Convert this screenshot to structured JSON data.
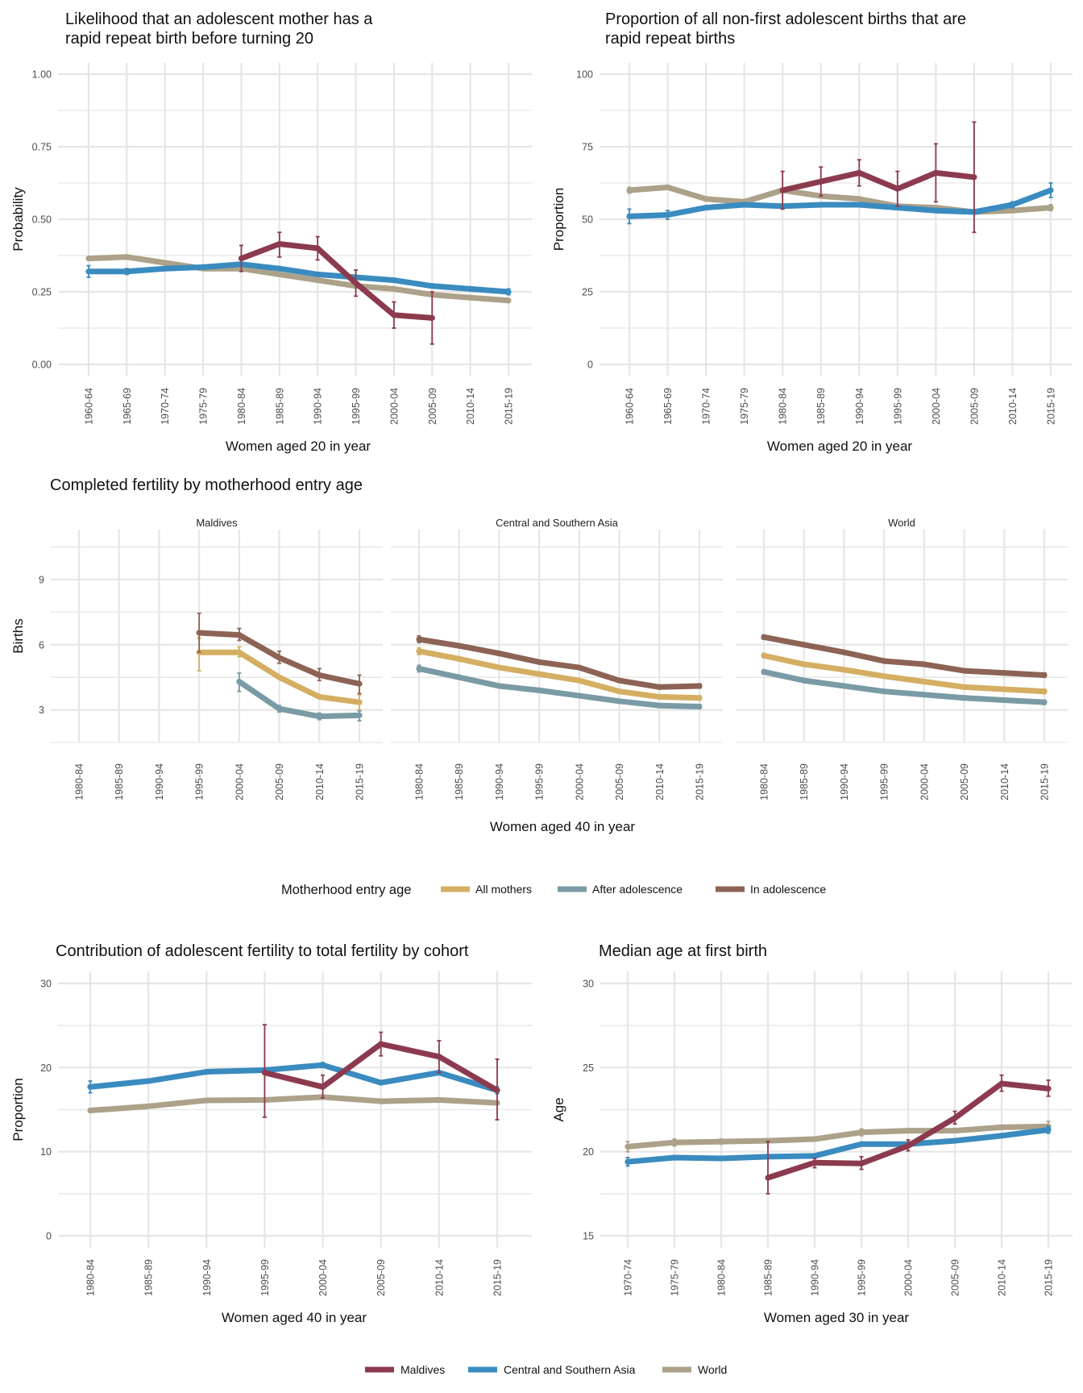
{
  "colors": {
    "maldives": "#8c3b4f",
    "csa": "#3a8bbf",
    "world": "#aca189",
    "all_mothers": "#d4ae62",
    "after_adolescence": "#7a9ba5",
    "in_adolescence": "#8c6355",
    "grid": "#e6e6e6"
  },
  "legends": {
    "motherhood": {
      "title": "Motherhood entry age",
      "items": [
        "All mothers",
        "After adolescence",
        "In adolescence"
      ]
    },
    "regions": {
      "items": [
        "Maldives",
        "Central and Southern Asia",
        "World"
      ]
    }
  },
  "chart_data": [
    {
      "id": "p1",
      "type": "line",
      "title": [
        "Likelihood that an adolescent mother has a",
        "rapid repeat birth before turning 20"
      ],
      "xlabel": "Women aged 20 in year",
      "ylabel": "Probability",
      "ylim": [
        0,
        1.0
      ],
      "yticks": [
        "0.00",
        "0.25",
        "0.50",
        "0.75",
        "1.00"
      ],
      "ytick_values": [
        0,
        0.25,
        0.5,
        0.75,
        1.0
      ],
      "categories": [
        "1960-64",
        "1965-69",
        "1970-74",
        "1975-79",
        "1980-84",
        "1985-89",
        "1990-94",
        "1995-99",
        "2000-04",
        "2005-09",
        "2010-14",
        "2015-19"
      ],
      "series": [
        {
          "name": "World",
          "key": "world",
          "values": [
            0.365,
            0.37,
            0.35,
            0.33,
            0.33,
            0.31,
            0.29,
            0.27,
            0.26,
            0.24,
            0.23,
            0.22
          ],
          "errors": [
            [
              0.36,
              0.37
            ],
            null,
            null,
            null,
            null,
            null,
            null,
            null,
            null,
            null,
            null,
            [
              0.215,
              0.225
            ]
          ]
        },
        {
          "name": "Central and Southern Asia",
          "key": "csa",
          "values": [
            0.32,
            0.32,
            0.33,
            0.335,
            0.345,
            0.33,
            0.31,
            0.3,
            0.29,
            0.27,
            0.26,
            0.25
          ],
          "errors": [
            [
              0.3,
              0.34
            ],
            [
              0.31,
              0.33
            ],
            null,
            null,
            null,
            null,
            null,
            null,
            null,
            null,
            null,
            [
              0.24,
              0.26
            ]
          ]
        },
        {
          "name": "Maldives",
          "key": "maldives",
          "values": [
            null,
            null,
            null,
            null,
            0.365,
            0.415,
            0.4,
            0.28,
            0.17,
            0.16,
            null,
            null
          ],
          "errors": [
            null,
            null,
            null,
            null,
            [
              0.32,
              0.41
            ],
            [
              0.37,
              0.455
            ],
            [
              0.36,
              0.44
            ],
            [
              0.235,
              0.325
            ],
            [
              0.125,
              0.215
            ],
            [
              0.07,
              0.25
            ],
            null,
            null
          ]
        }
      ]
    },
    {
      "id": "p2",
      "type": "line",
      "title": [
        "Proportion of all non-first adolescent births that are",
        "rapid repeat births"
      ],
      "xlabel": "Women aged 20 in year",
      "ylabel": "Proportion",
      "ylim": [
        0,
        100
      ],
      "yticks": [
        "0",
        "25",
        "50",
        "75",
        "100"
      ],
      "ytick_values": [
        0,
        25,
        50,
        75,
        100
      ],
      "categories": [
        "1960-64",
        "1965-69",
        "1970-74",
        "1975-79",
        "1980-84",
        "1985-89",
        "1990-94",
        "1995-99",
        "2000-04",
        "2005-09",
        "2010-14",
        "2015-19"
      ],
      "series": [
        {
          "name": "World",
          "key": "world",
          "values": [
            60,
            61,
            57,
            56,
            60,
            58,
            57,
            54.5,
            54,
            52.5,
            53,
            54
          ],
          "errors": [
            [
              59,
              61
            ],
            null,
            null,
            null,
            null,
            null,
            null,
            null,
            null,
            null,
            null,
            [
              53,
              55
            ]
          ]
        },
        {
          "name": "Central and Southern Asia",
          "key": "csa",
          "values": [
            51,
            51.5,
            54,
            55,
            54.5,
            55,
            55,
            54,
            53,
            52.5,
            55,
            60
          ],
          "errors": [
            [
              48.5,
              53.5
            ],
            [
              50,
              53
            ],
            null,
            null,
            null,
            null,
            null,
            null,
            null,
            null,
            [
              54,
              56
            ],
            [
              57.5,
              62.5
            ]
          ]
        },
        {
          "name": "Maldives",
          "key": "maldives",
          "values": [
            null,
            null,
            null,
            null,
            60,
            63,
            66,
            60.5,
            66,
            64.5,
            null,
            null
          ],
          "errors": [
            null,
            null,
            null,
            null,
            [
              53.5,
              66.5
            ],
            [
              58,
              68
            ],
            [
              61.5,
              70.5
            ],
            [
              54.5,
              66.5
            ],
            [
              56,
              76
            ],
            [
              45.5,
              83.5
            ],
            null,
            null
          ]
        }
      ]
    },
    {
      "id": "p3",
      "type": "line",
      "title": [
        "Completed fertility by motherhood entry age"
      ],
      "xlabel": "Women aged 40 in year",
      "ylabel": "Births",
      "ylim": [
        1.5,
        11.3
      ],
      "yticks": [
        "3",
        "6",
        "9"
      ],
      "ytick_values": [
        3,
        6,
        9
      ],
      "categories": [
        "1980-84",
        "1985-89",
        "1990-94",
        "1995-99",
        "2000-04",
        "2005-09",
        "2010-14",
        "2015-19"
      ],
      "facets": [
        {
          "label": "Maldives",
          "series": [
            {
              "name": "All mothers",
              "key": "all_mothers",
              "values": [
                null,
                null,
                null,
                5.65,
                5.65,
                4.5,
                3.6,
                3.35
              ],
              "errors": [
                null,
                null,
                null,
                [
                  4.8,
                  6.3
                ],
                [
                  5.45,
                  5.9
                ],
                null,
                null,
                [
                  3.0,
                  3.7
                ]
              ]
            },
            {
              "name": "After adolescence",
              "key": "after_adolescence",
              "values": [
                null,
                null,
                null,
                null,
                4.3,
                3.05,
                2.7,
                2.75
              ],
              "errors": [
                null,
                null,
                null,
                null,
                [
                  3.85,
                  4.7
                ],
                [
                  2.9,
                  3.2
                ],
                [
                  2.55,
                  2.85
                ],
                [
                  2.5,
                  2.95
                ]
              ]
            },
            {
              "name": "In adolescence",
              "key": "in_adolescence",
              "values": [
                null,
                null,
                null,
                6.55,
                6.45,
                5.4,
                4.6,
                4.2
              ],
              "errors": [
                null,
                null,
                null,
                [
                  5.65,
                  7.45
                ],
                [
                  6.2,
                  6.75
                ],
                [
                  5.15,
                  5.7
                ],
                [
                  4.35,
                  4.9
                ],
                [
                  3.75,
                  4.6
                ]
              ]
            }
          ]
        },
        {
          "label": "Central and Southern Asia",
          "series": [
            {
              "name": "All mothers",
              "key": "all_mothers",
              "values": [
                5.7,
                5.35,
                4.95,
                4.65,
                4.35,
                3.85,
                3.6,
                3.55
              ],
              "errors": [
                [
                  5.55,
                  5.85
                ],
                null,
                null,
                null,
                null,
                null,
                null,
                [
                  3.45,
                  3.65
                ]
              ]
            },
            {
              "name": "After adolescence",
              "key": "after_adolescence",
              "values": [
                4.9,
                4.5,
                4.1,
                3.9,
                3.65,
                3.4,
                3.2,
                3.15
              ],
              "errors": [
                [
                  4.75,
                  5.05
                ],
                null,
                null,
                null,
                null,
                null,
                null,
                [
                  3.05,
                  3.25
                ]
              ]
            },
            {
              "name": "In adolescence",
              "key": "in_adolescence",
              "values": [
                6.25,
                5.95,
                5.6,
                5.2,
                4.95,
                4.35,
                4.05,
                4.1
              ],
              "errors": [
                [
                  6.1,
                  6.4
                ],
                null,
                null,
                null,
                null,
                null,
                null,
                [
                  4.0,
                  4.2
                ]
              ]
            }
          ]
        },
        {
          "label": "World",
          "series": [
            {
              "name": "All mothers",
              "key": "all_mothers",
              "values": [
                5.5,
                5.1,
                4.85,
                4.55,
                4.3,
                4.05,
                3.95,
                3.85
              ],
              "errors": [
                [
                  5.4,
                  5.6
                ],
                null,
                null,
                null,
                null,
                null,
                null,
                [
                  3.75,
                  3.95
                ]
              ]
            },
            {
              "name": "After adolescence",
              "key": "after_adolescence",
              "values": [
                4.75,
                4.35,
                4.1,
                3.85,
                3.7,
                3.55,
                3.45,
                3.35
              ],
              "errors": [
                [
                  4.65,
                  4.85
                ],
                null,
                null,
                null,
                null,
                null,
                null,
                [
                  3.25,
                  3.45
                ]
              ]
            },
            {
              "name": "In adolescence",
              "key": "in_adolescence",
              "values": [
                6.35,
                6.0,
                5.65,
                5.25,
                5.1,
                4.8,
                4.7,
                4.6
              ],
              "errors": [
                [
                  6.25,
                  6.45
                ],
                null,
                null,
                null,
                null,
                null,
                null,
                [
                  4.5,
                  4.7
                ]
              ]
            }
          ]
        }
      ]
    },
    {
      "id": "p4",
      "type": "line",
      "title": [
        "Contribution of adolescent fertility to total fertility by cohort"
      ],
      "xlabel": "Women aged 40 in year",
      "ylabel": "Proportion",
      "ylim": [
        0,
        30
      ],
      "yticks": [
        "0",
        "10",
        "20",
        "30"
      ],
      "ytick_values": [
        0,
        10,
        20,
        30
      ],
      "categories": [
        "1980-84",
        "1985-89",
        "1990-94",
        "1995-99",
        "2000-04",
        "2005-09",
        "2010-14",
        "2015-19"
      ],
      "series": [
        {
          "name": "World",
          "key": "world",
          "values": [
            14.9,
            15.4,
            16.1,
            16.15,
            16.5,
            16.0,
            16.15,
            15.8
          ],
          "errors": [
            [
              14.7,
              15.1
            ],
            null,
            null,
            null,
            null,
            null,
            null,
            [
              15.6,
              16.0
            ]
          ]
        },
        {
          "name": "Central and Southern Asia",
          "key": "csa",
          "values": [
            17.7,
            18.4,
            19.5,
            19.7,
            20.3,
            18.2,
            19.4,
            17.3
          ],
          "errors": [
            [
              17.0,
              18.4
            ],
            [
              18.2,
              18.6
            ],
            null,
            null,
            [
              20.0,
              20.6
            ],
            null,
            null,
            [
              16.9,
              17.7
            ]
          ]
        },
        {
          "name": "Maldives",
          "key": "maldives",
          "values": [
            null,
            null,
            null,
            19.4,
            17.7,
            22.8,
            21.3,
            17.3
          ],
          "errors": [
            null,
            null,
            null,
            [
              14.1,
              25.1
            ],
            [
              16.4,
              19.1
            ],
            [
              21.4,
              24.2
            ],
            [
              19.4,
              23.2
            ],
            [
              13.8,
              21.0
            ]
          ]
        }
      ]
    },
    {
      "id": "p5",
      "type": "line",
      "title": [
        "Median age at first birth"
      ],
      "xlabel": "Women aged 30 in year",
      "ylabel": "Age",
      "ylim": [
        15,
        30
      ],
      "yticks": [
        "15",
        "20",
        "25",
        "30"
      ],
      "ytick_values": [
        15,
        20,
        25,
        30
      ],
      "categories": [
        "1970-74",
        "1975-79",
        "1980-84",
        "1985-89",
        "1990-94",
        "1995-99",
        "2000-04",
        "2005-09",
        "2010-14",
        "2015-19"
      ],
      "series": [
        {
          "name": "World",
          "key": "world",
          "values": [
            20.3,
            20.55,
            20.6,
            20.65,
            20.75,
            21.15,
            21.25,
            21.25,
            21.45,
            21.5
          ],
          "errors": [
            [
              20.0,
              20.6
            ],
            [
              20.35,
              20.75
            ],
            [
              20.45,
              20.75
            ],
            null,
            null,
            [
              20.95,
              21.35
            ],
            null,
            null,
            null,
            [
              21.2,
              21.8
            ]
          ]
        },
        {
          "name": "Central and Southern Asia",
          "key": "csa",
          "values": [
            19.4,
            19.65,
            19.6,
            19.7,
            19.75,
            20.45,
            20.45,
            20.65,
            20.95,
            21.3
          ],
          "errors": [
            [
              19.15,
              19.65
            ],
            null,
            null,
            null,
            null,
            null,
            null,
            null,
            null,
            [
              21.1,
              21.5
            ]
          ]
        },
        {
          "name": "Maldives",
          "key": "maldives",
          "values": [
            null,
            null,
            null,
            18.45,
            19.35,
            19.3,
            20.35,
            22.0,
            24.05,
            23.75
          ],
          "errors": [
            null,
            null,
            null,
            [
              17.5,
              20.6
            ],
            [
              19.05,
              19.6
            ],
            [
              18.95,
              19.7
            ],
            [
              20.05,
              20.7
            ],
            [
              21.65,
              22.4
            ],
            [
              23.6,
              24.55
            ],
            [
              23.3,
              24.25
            ]
          ]
        }
      ]
    }
  ]
}
